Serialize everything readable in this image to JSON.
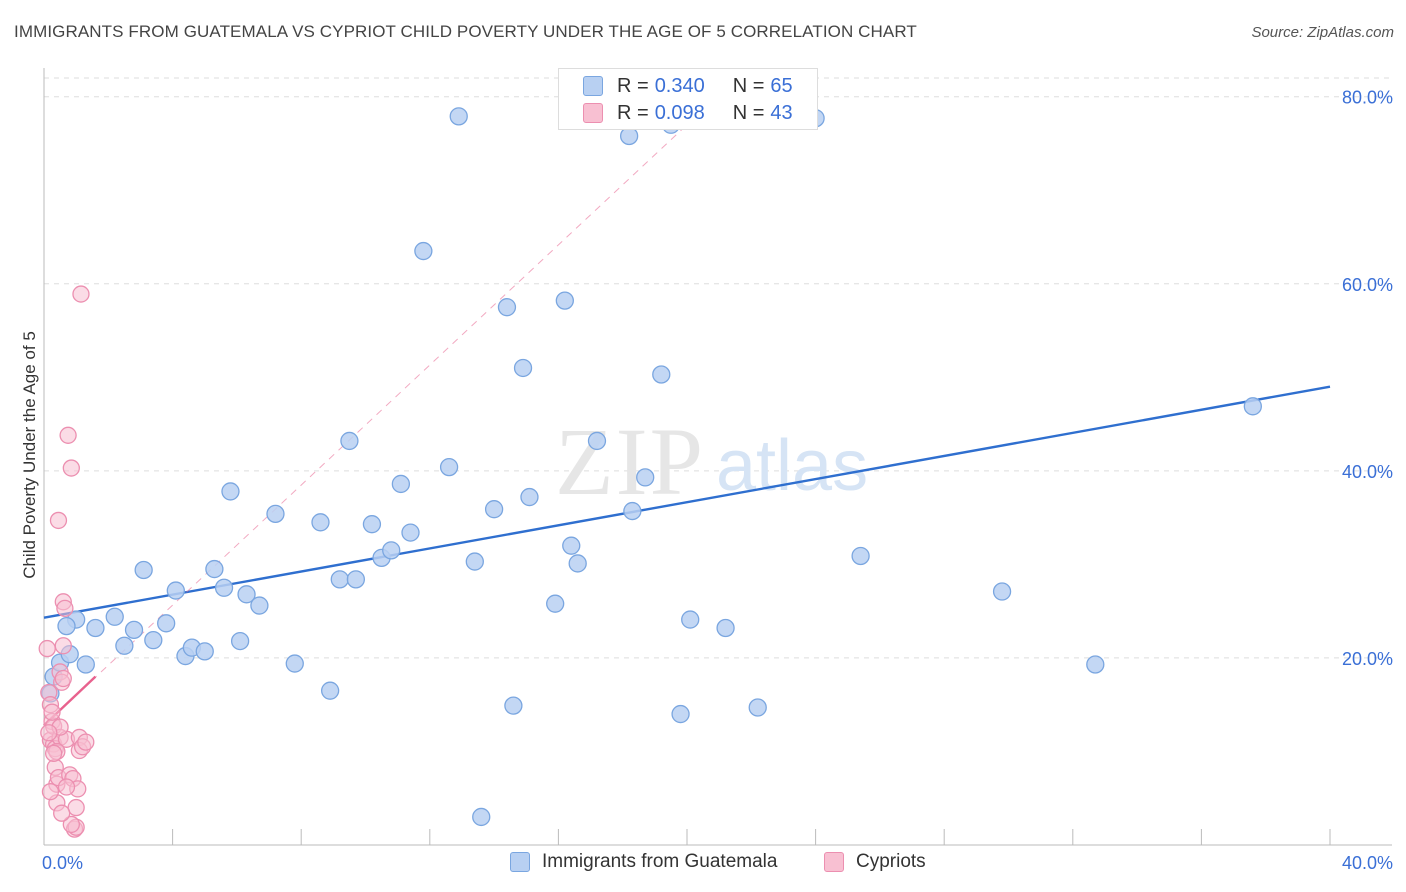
{
  "title": "IMMIGRANTS FROM GUATEMALA VS CYPRIOT CHILD POVERTY UNDER THE AGE OF 5 CORRELATION CHART",
  "source": "Source: ZipAtlas.com",
  "watermark": {
    "zip": "ZIP",
    "atlas": "atlas"
  },
  "legend": {
    "series1": {
      "r_label": "R =",
      "r_value": "0.340",
      "n_label": "N =",
      "n_value": "65"
    },
    "series2": {
      "r_label": "R =",
      "r_value": "0.098",
      "n_label": "N =",
      "n_value": "43"
    }
  },
  "colors": {
    "blue_fill": "#b8d0f2",
    "blue_stroke": "#7aa6e0",
    "blue_line": "#2f6fcf",
    "pink_fill": "#f8c0d2",
    "pink_stroke": "#ec8fb0",
    "pink_line": "#e8628e",
    "tick_color": "#3a6fd6",
    "grid": "#dedede"
  },
  "chart_data": {
    "type": "scatter",
    "xlabel": "",
    "ylabel": "Child Poverty Under the Age of 5",
    "xlim": [
      0,
      40
    ],
    "ylim": [
      0,
      82
    ],
    "x_tick_labels": [
      {
        "value": 0,
        "label": "0.0%"
      },
      {
        "value": 40,
        "label": "40.0%"
      }
    ],
    "y_tick_labels": [
      {
        "value": 20,
        "label": "20.0%"
      },
      {
        "value": 40,
        "label": "40.0%"
      },
      {
        "value": 60,
        "label": "60.0%"
      },
      {
        "value": 80,
        "label": "80.0%"
      }
    ],
    "grid": true,
    "series": [
      {
        "name": "Immigrants from Guatemala",
        "color": "blue",
        "points": [
          [
            0.3,
            18.0
          ],
          [
            0.5,
            19.5
          ],
          [
            0.8,
            20.4
          ],
          [
            1.0,
            24.1
          ],
          [
            1.3,
            19.3
          ],
          [
            1.6,
            23.2
          ],
          [
            2.2,
            24.4
          ],
          [
            2.5,
            21.3
          ],
          [
            2.8,
            23.0
          ],
          [
            3.1,
            29.4
          ],
          [
            3.4,
            21.9
          ],
          [
            3.8,
            23.7
          ],
          [
            4.1,
            27.2
          ],
          [
            4.4,
            20.2
          ],
          [
            4.6,
            21.1
          ],
          [
            5.0,
            20.7
          ],
          [
            5.3,
            29.5
          ],
          [
            5.6,
            27.5
          ],
          [
            5.8,
            37.8
          ],
          [
            6.1,
            21.8
          ],
          [
            6.3,
            26.8
          ],
          [
            6.7,
            25.6
          ],
          [
            7.2,
            35.4
          ],
          [
            7.8,
            19.4
          ],
          [
            8.6,
            34.5
          ],
          [
            8.9,
            16.5
          ],
          [
            9.2,
            28.4
          ],
          [
            9.5,
            43.2
          ],
          [
            9.7,
            28.4
          ],
          [
            10.2,
            34.3
          ],
          [
            10.5,
            30.7
          ],
          [
            10.8,
            31.5
          ],
          [
            11.1,
            38.6
          ],
          [
            11.4,
            33.4
          ],
          [
            11.8,
            63.5
          ],
          [
            12.6,
            40.4
          ],
          [
            12.9,
            77.9
          ],
          [
            13.4,
            30.3
          ],
          [
            13.6,
            3.0
          ],
          [
            14.0,
            35.9
          ],
          [
            14.4,
            57.5
          ],
          [
            14.6,
            14.9
          ],
          [
            14.9,
            51.0
          ],
          [
            15.1,
            37.2
          ],
          [
            15.9,
            25.8
          ],
          [
            16.2,
            58.2
          ],
          [
            16.4,
            32.0
          ],
          [
            16.6,
            30.1
          ],
          [
            17.2,
            43.2
          ],
          [
            18.2,
            75.8
          ],
          [
            18.3,
            35.7
          ],
          [
            18.7,
            39.3
          ],
          [
            19.2,
            50.3
          ],
          [
            19.5,
            77.0
          ],
          [
            19.8,
            14.0
          ],
          [
            20.1,
            24.1
          ],
          [
            21.2,
            23.2
          ],
          [
            22.2,
            14.7
          ],
          [
            24.0,
            77.7
          ],
          [
            25.4,
            30.9
          ],
          [
            29.8,
            27.1
          ],
          [
            32.7,
            19.3
          ],
          [
            37.6,
            46.9
          ],
          [
            0.2,
            16.2
          ],
          [
            0.7,
            23.4
          ]
        ]
      },
      {
        "name": "Cypriots",
        "color": "pink",
        "points": [
          [
            0.1,
            21.0
          ],
          [
            0.15,
            16.3
          ],
          [
            0.2,
            15.0
          ],
          [
            0.2,
            11.2
          ],
          [
            0.25,
            13.2
          ],
          [
            0.3,
            12.7
          ],
          [
            0.3,
            10.8
          ],
          [
            0.35,
            10.3
          ],
          [
            0.35,
            8.3
          ],
          [
            0.4,
            6.5
          ],
          [
            0.4,
            4.5
          ],
          [
            0.45,
            7.2
          ],
          [
            0.45,
            34.7
          ],
          [
            0.5,
            11.5
          ],
          [
            0.5,
            18.5
          ],
          [
            0.55,
            17.4
          ],
          [
            0.6,
            26.0
          ],
          [
            0.6,
            21.3
          ],
          [
            0.65,
            25.3
          ],
          [
            0.7,
            11.3
          ],
          [
            0.75,
            43.8
          ],
          [
            0.8,
            7.5
          ],
          [
            0.85,
            40.3
          ],
          [
            0.9,
            7.1
          ],
          [
            0.95,
            1.7
          ],
          [
            1.0,
            4.0
          ],
          [
            1.0,
            1.9
          ],
          [
            1.05,
            6.0
          ],
          [
            1.1,
            11.5
          ],
          [
            1.1,
            10.1
          ],
          [
            1.15,
            58.9
          ],
          [
            1.2,
            10.5
          ],
          [
            1.3,
            11.0
          ],
          [
            0.4,
            10.0
          ],
          [
            0.5,
            12.6
          ],
          [
            0.6,
            17.8
          ],
          [
            0.7,
            6.2
          ],
          [
            0.2,
            5.7
          ],
          [
            0.3,
            9.8
          ],
          [
            0.85,
            2.2
          ],
          [
            0.55,
            3.4
          ],
          [
            0.25,
            14.2
          ],
          [
            0.15,
            12.0
          ]
        ]
      }
    ],
    "trendlines": [
      {
        "series": "Immigrants from Guatemala",
        "x": [
          0,
          40
        ],
        "y": [
          24.3,
          49.0
        ],
        "style": "solid"
      },
      {
        "series": "Cypriots",
        "x": [
          0,
          1.6
        ],
        "y": [
          12.8,
          18.0
        ],
        "style": "solid"
      },
      {
        "series": "Cypriots",
        "x": [
          0,
          20
        ],
        "y": [
          12.8,
          77.0
        ],
        "style": "dashed"
      }
    ]
  },
  "bottom_legend": {
    "item1": "Immigrants from Guatemala",
    "item2": "Cypriots"
  }
}
